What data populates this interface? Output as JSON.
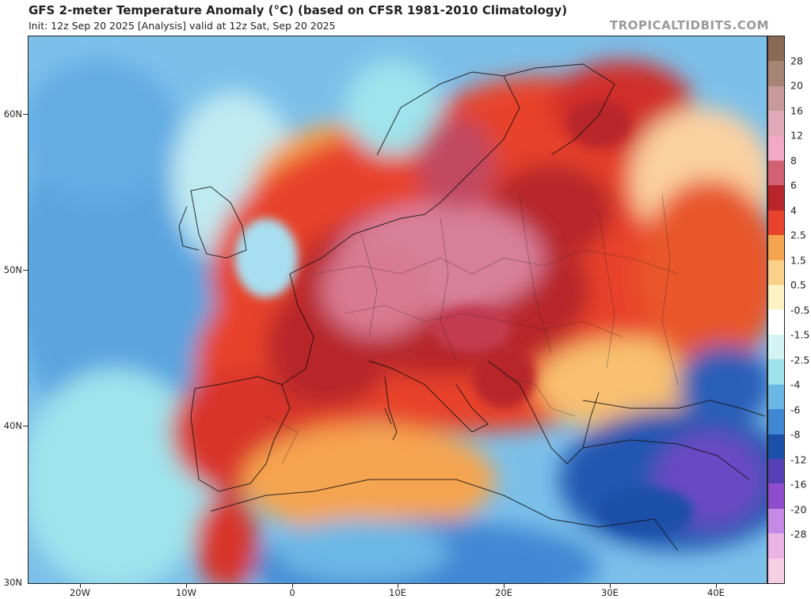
{
  "header": {
    "title": "GFS 2-meter Temperature Anomaly (°C) (based on CFSR 1981-2010 Climatology)",
    "subtitle": "Init: 12z Sep 20 2025   [Analysis]   valid at 12z Sat, Sep 20 2025",
    "credit": "TROPICALTIDBITS.COM"
  },
  "axes": {
    "lat_labels": [
      "60N",
      "50N",
      "40N",
      "30N"
    ],
    "lon_labels": [
      "20W",
      "10W",
      "0",
      "10E",
      "20E",
      "30E",
      "40E"
    ]
  },
  "colorbar": {
    "labels": [
      "28",
      "20",
      "16",
      "12",
      "8",
      "6",
      "4",
      "2.5",
      "1.5",
      "0.5",
      "-0.5",
      "-1.5",
      "-2.5",
      "-4",
      "-6",
      "-8",
      "-12",
      "-16",
      "-20",
      "-28"
    ],
    "colors": [
      "#8a6a55",
      "#a68575",
      "#c89a9a",
      "#e2a9bb",
      "#f1a9c6",
      "#d26273",
      "#b8262b",
      "#e8432c",
      "#f5a450",
      "#fbd18a",
      "#fdf2c4",
      "#ffffff",
      "#d4f4f4",
      "#9fe3ec",
      "#6ab8e6",
      "#3f88d4",
      "#1b4fa8",
      "#5540b8",
      "#8d4dcc",
      "#c58ae6",
      "#ecb4e4",
      "#f7cfe4"
    ]
  },
  "map_colors": {
    "ocean_cool": "#6fb6e8",
    "ocean_mild": "#9fe0ec",
    "warm": "#f5a450",
    "hot": "#e8432c",
    "very_hot": "#b8262b",
    "extreme": "#d8809b",
    "cold": "#2356b0",
    "very_cold": "#6a48c4"
  }
}
